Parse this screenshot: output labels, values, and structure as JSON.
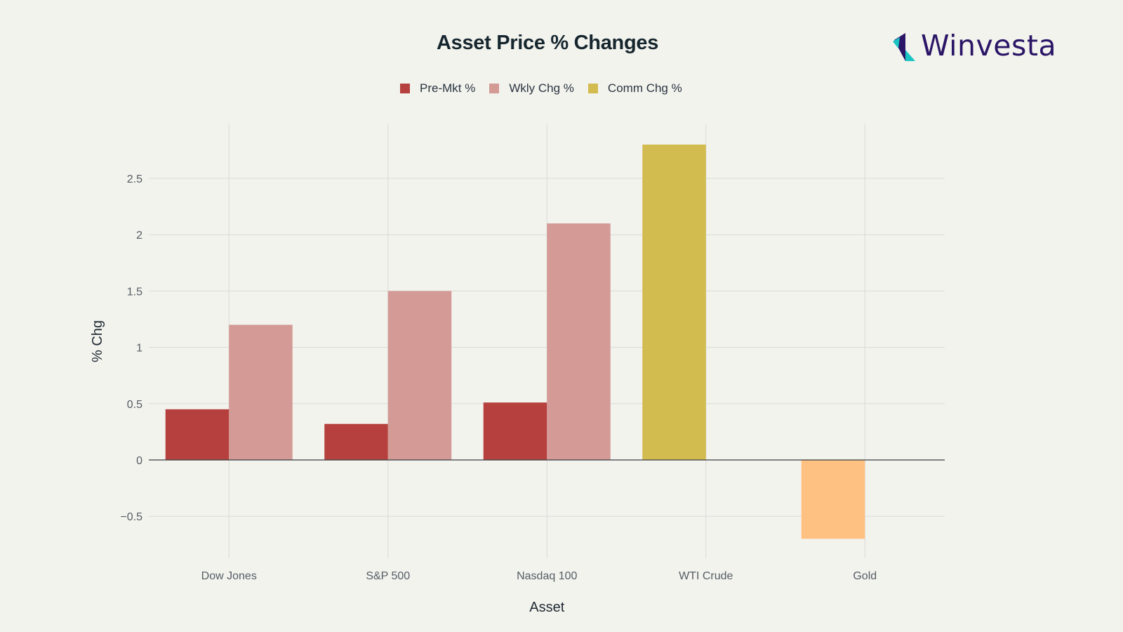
{
  "brand": {
    "name": "Winvesta"
  },
  "chart_data": {
    "type": "bar",
    "title": "Asset Price % Changes",
    "xlabel": "Asset",
    "ylabel": "% Chg",
    "categories": [
      "Dow Jones",
      "S&P 500",
      "Nasdaq 100",
      "WTI Crude",
      "Gold"
    ],
    "series": [
      {
        "name": "Pre-Mkt %",
        "color": "#b5403d",
        "values": [
          0.45,
          0.32,
          0.51,
          null,
          null
        ]
      },
      {
        "name": "Wkly Chg %",
        "color": "#d49a96",
        "values": [
          1.2,
          1.5,
          2.1,
          null,
          null
        ]
      },
      {
        "name": "Comm Chg %",
        "color": "#d2bb4f",
        "colors": [
          null,
          null,
          null,
          "#d2bb4f",
          "#fec181"
        ],
        "values": [
          null,
          null,
          null,
          2.8,
          -0.7
        ]
      }
    ],
    "yticks": [
      -0.5,
      0,
      0.5,
      1,
      1.5,
      2,
      2.5
    ],
    "ytick_labels": [
      "−0.5",
      "0",
      "0.5",
      "1",
      "1.5",
      "2",
      "2.5"
    ],
    "ylim": [
      -0.9,
      3.0
    ],
    "grid": true,
    "legend_position": "top-center"
  }
}
